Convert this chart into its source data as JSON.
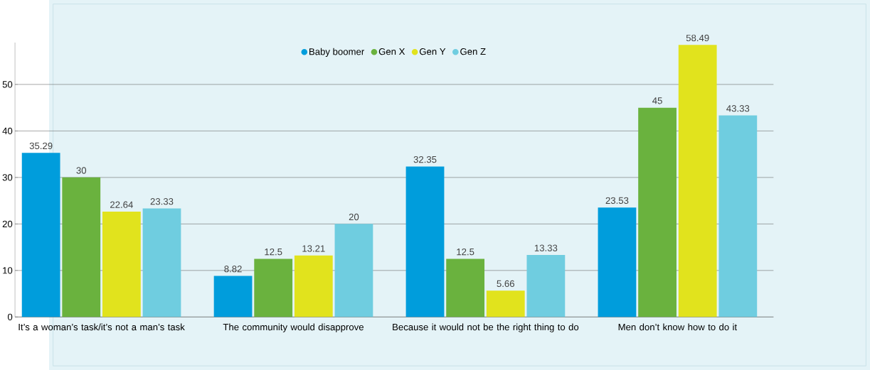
{
  "chart_data": {
    "type": "bar",
    "categories": [
      "It’s a woman’s task/it’s not a man’s task",
      "The community would disapprove",
      "Because it would not be the right thing to do",
      "Men don’t know how to do it"
    ],
    "series": [
      {
        "name": "Baby boomer",
        "color": "#009ddc",
        "values": [
          35.29,
          8.82,
          32.35,
          23.53
        ]
      },
      {
        "name": "Gen X",
        "color": "#6ab23e",
        "values": [
          30,
          12.5,
          12.5,
          45
        ]
      },
      {
        "name": "Gen Y",
        "color": "#e1e31d",
        "values": [
          22.64,
          13.21,
          5.66,
          58.49
        ]
      },
      {
        "name": "Gen Z",
        "color": "#6fcde0",
        "values": [
          23.33,
          20,
          13.33,
          43.33
        ]
      }
    ],
    "ylim": [
      0,
      59
    ],
    "yticks": [
      0,
      10,
      20,
      30,
      40,
      50
    ],
    "grid": "y",
    "legend": "top",
    "data_labels": true
  }
}
